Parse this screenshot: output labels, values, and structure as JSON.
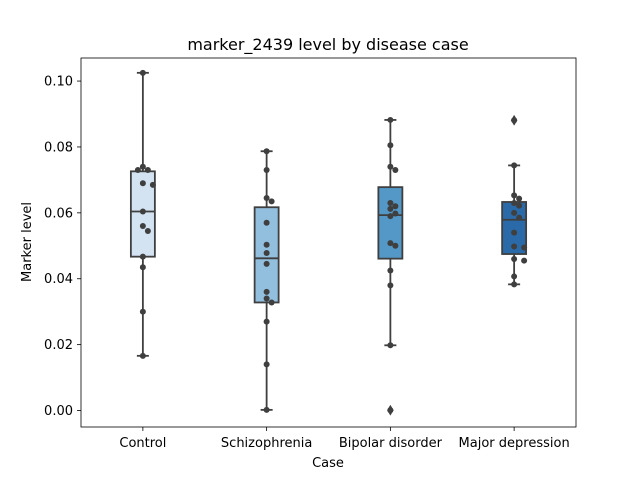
{
  "chart_data": {
    "type": "box",
    "title": "marker_2439 level by disease case",
    "xlabel": "Case",
    "ylabel": "Marker level",
    "categories": [
      "Control",
      "Schizophrenia",
      "Bipolar disorder",
      "Major depression"
    ],
    "yticks": [
      "0.00",
      "0.02",
      "0.04",
      "0.06",
      "0.08",
      "0.10"
    ],
    "ytick_values": [
      0.0,
      0.02,
      0.04,
      0.06,
      0.08,
      0.1
    ],
    "ylim": [
      -0.005,
      0.107
    ],
    "grid": false,
    "legend": "none",
    "box_colors": [
      "#d4e3f2",
      "#93bfde",
      "#5498c8",
      "#2a6aa9"
    ],
    "boxes": [
      {
        "name": "Control",
        "min": 0.0166,
        "q1": 0.0467,
        "median": 0.0604,
        "q3": 0.0726,
        "max": 0.1025,
        "outliers": []
      },
      {
        "name": "Schizophrenia",
        "min": 0.0002,
        "q1": 0.0328,
        "median": 0.0462,
        "q3": 0.0617,
        "max": 0.0787,
        "outliers": []
      },
      {
        "name": "Bipolar disorder",
        "min": 0.0198,
        "q1": 0.0461,
        "median": 0.0593,
        "q3": 0.0678,
        "max": 0.0882,
        "outliers": [
          0.0001
        ]
      },
      {
        "name": "Major depression",
        "min": 0.0383,
        "q1": 0.0475,
        "median": 0.0579,
        "q3": 0.0633,
        "max": 0.0744,
        "outliers": [
          0.0881
        ]
      }
    ],
    "points": [
      [
        0.1025,
        0.074,
        0.073,
        0.073,
        0.069,
        0.0685,
        0.0604,
        0.056,
        0.0545,
        0.0467,
        0.0435,
        0.03,
        0.0166
      ],
      [
        0.0787,
        0.073,
        0.0645,
        0.0635,
        0.057,
        0.0503,
        0.0478,
        0.0445,
        0.036,
        0.034,
        0.0328,
        0.027,
        0.014,
        0.0002
      ],
      [
        0.0882,
        0.0805,
        0.074,
        0.073,
        0.063,
        0.062,
        0.0612,
        0.0598,
        0.059,
        0.0508,
        0.05,
        0.0425,
        0.038,
        0.0198,
        0.0001
      ],
      [
        0.0881,
        0.0744,
        0.0653,
        0.0643,
        0.063,
        0.0622,
        0.06,
        0.0585,
        0.054,
        0.0498,
        0.0495,
        0.046,
        0.0455,
        0.0407,
        0.0383
      ]
    ]
  }
}
